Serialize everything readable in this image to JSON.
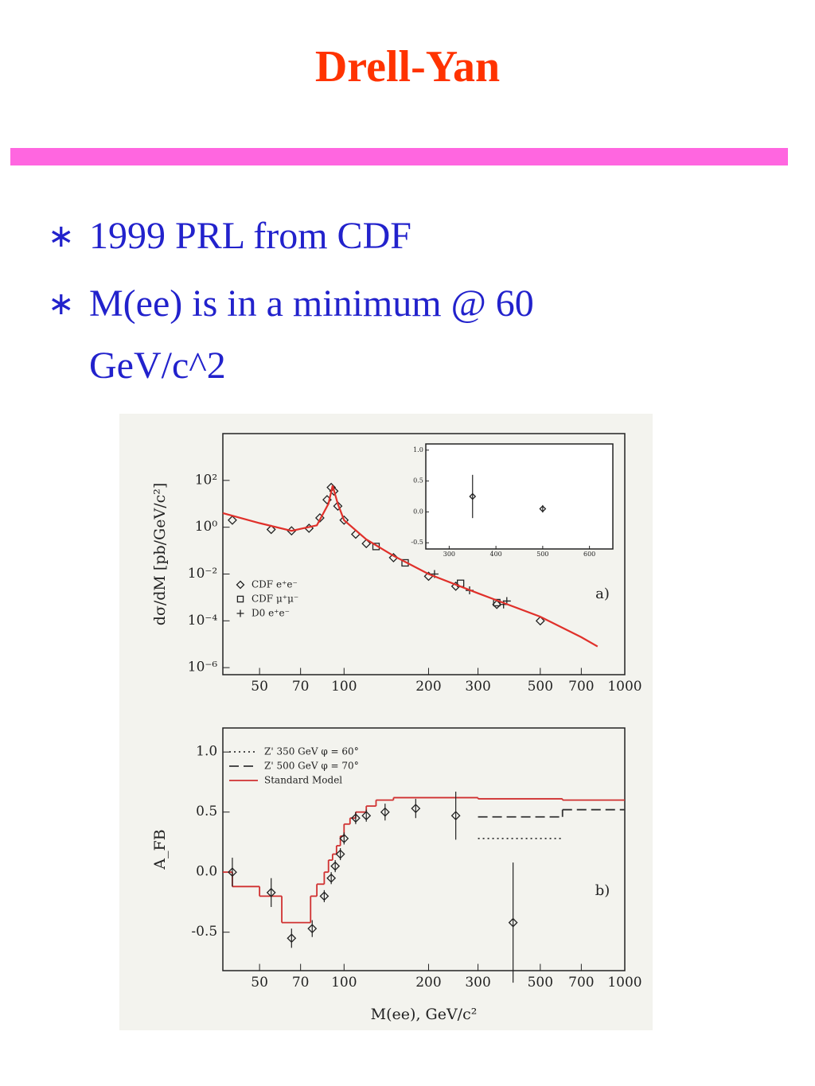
{
  "header": {
    "title": "Drell-Yan"
  },
  "bullets": [
    "1999 PRL from CDF",
    "M(ee) is in a minimum @ 60 GeV/c^2"
  ],
  "chart_data": [
    {
      "type": "scatter",
      "xscale": "log",
      "yscale": "log",
      "ylabel": "dσ/dM [pb/GeV/c²]",
      "annotation": "a)",
      "xlim": [
        37,
        1000
      ],
      "ylim": [
        5e-07,
        10000
      ],
      "xticks": [
        50,
        70,
        100,
        200,
        300,
        500,
        700,
        1000
      ],
      "yticks": [
        {
          "value": 100,
          "label": "10²"
        },
        {
          "value": 1,
          "label": "10⁰"
        },
        {
          "value": 0.01,
          "label": "10⁻²"
        },
        {
          "value": 0.0001,
          "label": "10⁻⁴"
        },
        {
          "value": 1e-06,
          "label": "10⁻⁶"
        }
      ],
      "legend": "lower-left",
      "series": [
        {
          "name": "CDF e⁺e⁻",
          "marker": "diamond",
          "color": "#222222",
          "x": [
            40,
            55,
            65,
            75,
            82,
            87,
            90,
            92,
            95,
            100,
            110,
            120,
            150,
            200,
            250,
            350,
            500
          ],
          "values": [
            2,
            0.8,
            0.7,
            0.9,
            2.5,
            15,
            50,
            35,
            8,
            2,
            0.5,
            0.2,
            0.05,
            0.008,
            0.003,
            0.0005,
            0.0001
          ]
        },
        {
          "name": "CDF μ⁺μ⁻",
          "marker": "square",
          "color": "#222222",
          "x": [
            130,
            165,
            260,
            350
          ],
          "values": [
            0.15,
            0.03,
            0.004,
            0.0006
          ]
        },
        {
          "name": "D0 e⁺e⁻",
          "marker": "plus",
          "color": "#222222",
          "x": [
            210,
            280,
            370,
            380
          ],
          "values": [
            0.01,
            0.002,
            0.0005,
            0.0007
          ]
        },
        {
          "dash": "solid",
          "color": "#e0302a",
          "x": [
            37,
            50,
            65,
            80,
            88,
            91,
            95,
            100,
            120,
            150,
            200,
            300,
            500,
            700,
            800
          ],
          "values": [
            4,
            1.5,
            0.7,
            1.2,
            10,
            60,
            10,
            2,
            0.3,
            0.06,
            0.01,
            0.0015,
            0.00015,
            2e-05,
            8e-06
          ]
        }
      ]
    },
    {
      "type": "scatter",
      "xlim": [
        250,
        650
      ],
      "ylim": [
        -0.6,
        1.1
      ],
      "xticks": [
        300,
        400,
        500,
        600
      ],
      "yticks": [
        {
          "value": 1,
          "label": "1.0"
        },
        {
          "value": 0.5,
          "label": "0.5"
        },
        {
          "value": 0,
          "label": "0.0"
        },
        -0.5
      ],
      "series": [
        {
          "marker": "diamond",
          "color": "#222222",
          "x": [
            350,
            500
          ],
          "values": [
            0.25,
            0.05
          ],
          "errors": [
            0.35,
            0.06
          ]
        }
      ]
    },
    {
      "type": "scatter",
      "xscale": "log",
      "ylabel": "A_FB",
      "xlabel": "M(ee), GeV/c²",
      "annotation": "b)",
      "xlim": [
        37,
        1000
      ],
      "ylim": [
        -0.82,
        1.2
      ],
      "xticks": [
        50,
        70,
        100,
        200,
        300,
        500,
        700,
        1000
      ],
      "yticks": [
        {
          "value": 1,
          "label": "1.0"
        },
        {
          "value": 0.5,
          "label": "0.5"
        },
        {
          "value": 0,
          "label": "0.0"
        },
        -0.5
      ],
      "legend": "upper-left",
      "series": [
        {
          "name": "Z' 350 GeV φ = 60°",
          "dash": "dotted",
          "color": "#333333",
          "bins": [
            300,
            600
          ],
          "values": [
            0.28
          ]
        },
        {
          "name": "Z' 500 GeV φ = 70°",
          "dash": "dashed",
          "color": "#333333",
          "bins": [
            300,
            600,
            1000
          ],
          "values": [
            0.46,
            0.52
          ]
        },
        {
          "name": "Standard Model",
          "dash": "solid",
          "color": "#d03030",
          "bins": [
            37,
            40,
            50,
            60,
            76,
            80,
            85,
            88,
            91,
            94,
            97,
            100,
            105,
            110,
            120,
            130,
            150,
            300,
            600,
            1000
          ],
          "values": [
            0.0,
            -0.12,
            -0.2,
            -0.42,
            -0.2,
            -0.1,
            0.0,
            0.1,
            0.15,
            0.22,
            0.3,
            0.4,
            0.45,
            0.5,
            0.55,
            0.6,
            0.62,
            0.61,
            0.6
          ]
        },
        {
          "marker": "diamond",
          "color": "#222222",
          "x": [
            40,
            55,
            65,
            77,
            85,
            90,
            93,
            97,
            100,
            110,
            120,
            140,
            180,
            250,
            400
          ],
          "values": [
            0.0,
            -0.17,
            -0.55,
            -0.47,
            -0.2,
            -0.05,
            0.05,
            0.15,
            0.28,
            0.45,
            0.47,
            0.5,
            0.53,
            0.47,
            -0.42
          ],
          "errors": [
            0.12,
            0.12,
            0.08,
            0.07,
            0.05,
            0.05,
            0.05,
            0.05,
            0.05,
            0.05,
            0.05,
            0.07,
            0.08,
            0.2,
            0.5
          ]
        }
      ]
    }
  ]
}
